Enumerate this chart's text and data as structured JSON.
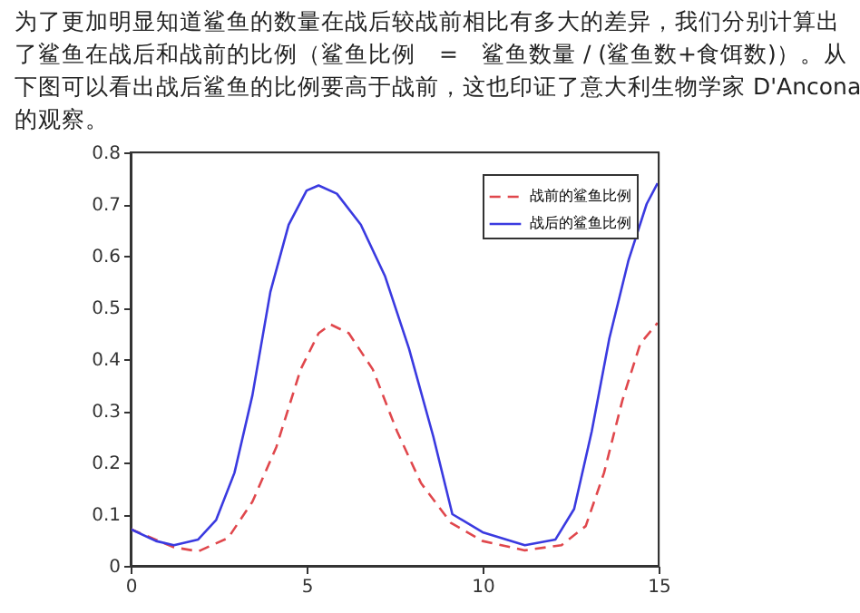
{
  "chart_data": {
    "type": "line",
    "annotations": [
      "为了更加明显知道鲨鱼的数量在战后较战前相比有多大的差异，我们分别计算出",
      "了鲨鱼在战后和战前的比例（鲨鱼比例　=　鲨鱼数量 / (鲨鱼数+食饵数)）。从",
      "下图可以看出战后鲨鱼的比例要高于战前，这也印证了意大利生物学家 D'Ancona",
      "的观察。"
    ],
    "xlim": [
      0,
      15
    ],
    "xticks": [
      0,
      5,
      10,
      15
    ],
    "ylim": [
      0,
      0.8
    ],
    "yticks": [
      0,
      0.1,
      0.2,
      0.3,
      0.4,
      0.5,
      0.6,
      0.7,
      0.8
    ],
    "grid": false,
    "legend": "top right",
    "series": [
      {
        "name": "战前的鲨鱼比例",
        "color": "#e0474c",
        "line_style": "dashed",
        "x": [
          0,
          1.23,
          1.92,
          2.77,
          3.46,
          4.14,
          4.83,
          5.34,
          5.68,
          6.2,
          6.88,
          7.57,
          8.25,
          9.1,
          10,
          11.2,
          12.24,
          12.93,
          13.45,
          13.97,
          14.48,
          14.97
        ],
        "values": [
          0.071,
          0.036,
          0.028,
          0.054,
          0.124,
          0.23,
          0.38,
          0.45,
          0.467,
          0.45,
          0.38,
          0.26,
          0.16,
          0.083,
          0.048,
          0.03,
          0.04,
          0.077,
          0.18,
          0.32,
          0.43,
          0.47
        ]
      },
      {
        "name": "战后的鲨鱼比例",
        "color": "#3a3ae0",
        "line_style": "solid",
        "x": [
          0,
          0.72,
          1.23,
          1.92,
          2.43,
          2.95,
          3.46,
          3.97,
          4.49,
          5.0,
          5.34,
          5.86,
          6.54,
          7.23,
          7.91,
          8.6,
          9.14,
          10,
          11.2,
          12.07,
          12.6,
          13.1,
          13.6,
          14.14,
          14.66,
          14.97
        ],
        "values": [
          0.071,
          0.048,
          0.04,
          0.051,
          0.089,
          0.18,
          0.33,
          0.53,
          0.66,
          0.726,
          0.736,
          0.72,
          0.66,
          0.56,
          0.42,
          0.25,
          0.1,
          0.065,
          0.04,
          0.051,
          0.11,
          0.26,
          0.44,
          0.59,
          0.7,
          0.74
        ]
      }
    ]
  }
}
